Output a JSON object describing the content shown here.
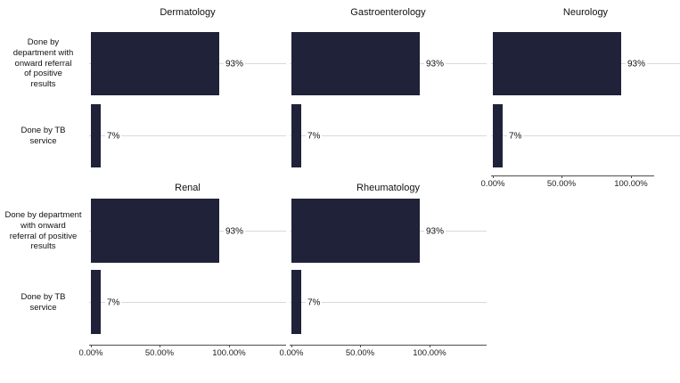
{
  "chart_data": {
    "type": "bar",
    "orientation": "horizontal",
    "title": "",
    "facets": [
      "Dermatology",
      "Gastroenterology",
      "Neurology",
      "Renal",
      "Rheumatology"
    ],
    "categories": [
      "Done by department with onward referral of positive results",
      "Done by TB service"
    ],
    "series": [
      {
        "name": "Dermatology",
        "values": [
          93,
          7
        ]
      },
      {
        "name": "Gastroenterology",
        "values": [
          93,
          7
        ]
      },
      {
        "name": "Neurology",
        "values": [
          93,
          7
        ]
      },
      {
        "name": "Renal",
        "values": [
          93,
          7
        ]
      },
      {
        "name": "Rheumatology",
        "values": [
          93,
          7
        ]
      }
    ],
    "data_labels": [
      "93%",
      "7%"
    ],
    "xlim": [
      0,
      100
    ],
    "x_tick_labels": [
      "0.00%",
      "50.00%",
      "100.00%"
    ],
    "legend": false,
    "grid": "light horizontal reference line through each category row"
  },
  "colors": {
    "bar": "#1f2239",
    "gridline": "#d9d9d9",
    "axis": "#4d4d4d",
    "text": "#111111"
  },
  "axis": {
    "ticks": [
      "0.00%",
      "50.00%",
      "100.00%"
    ]
  },
  "labels": {
    "top_row": [
      "Done by\ndepartment with\nonward referral\nof positive\nresults",
      "Done by TB\nservice"
    ],
    "bottom_row": [
      "Done by department\nwith onward\nreferral of positive\nresults",
      "Done by TB\nservice"
    ]
  },
  "panels": [
    {
      "title": "Dermatology",
      "values": [
        93,
        7
      ],
      "value_labels": [
        "93%",
        "7%"
      ]
    },
    {
      "title": "Gastroenterology",
      "values": [
        93,
        7
      ],
      "value_labels": [
        "93%",
        "7%"
      ]
    },
    {
      "title": "Neurology",
      "values": [
        93,
        7
      ],
      "value_labels": [
        "93%",
        "7%"
      ]
    },
    {
      "title": "Renal",
      "values": [
        93,
        7
      ],
      "value_labels": [
        "93%",
        "7%"
      ]
    },
    {
      "title": "Rheumatology",
      "values": [
        93,
        7
      ],
      "value_labels": [
        "93%",
        "7%"
      ]
    }
  ]
}
